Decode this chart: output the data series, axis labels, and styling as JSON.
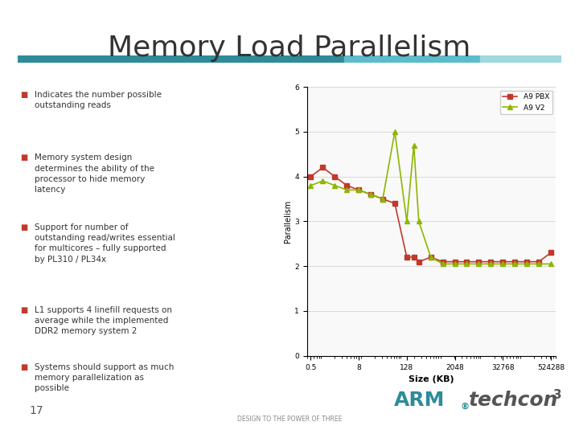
{
  "title": "Memory Load Parallelism",
  "title_fontsize": 26,
  "title_color": "#333333",
  "background_color": "#ffffff",
  "header_bar_colors": [
    "#2e8b9a",
    "#5bbccc",
    "#a0d8df"
  ],
  "bullet_color": "#c0392b",
  "bullets": [
    "Indicates the number possible\noutstanding reads",
    "Memory system design\ndetermines the ability of the\nprocessor to hide memory\nlatency",
    "Support for number of\noutstanding read/writes essential\nfor multicores – fully supported\nby PL310 / PL34x",
    "L1 supports 4 linefill requests on\naverage while the implemented\nDDR2 memory system 2",
    "Systems should support as much\nmemory parallelization as\npossible"
  ],
  "page_number": "17",
  "chart": {
    "x_labels": [
      "0.5",
      "8",
      "128",
      "2048",
      "32768",
      "524288"
    ],
    "x_log_values": [
      0.5,
      8,
      128,
      2048,
      32768,
      524288
    ],
    "ylabel": "Parallelism",
    "xlabel": "Size (KB)",
    "ylim": [
      0,
      6
    ],
    "yticks": [
      0,
      1,
      2,
      3,
      4,
      5,
      6
    ],
    "series": [
      {
        "label": "A9 PBX",
        "color": "#c0392b",
        "marker": "s",
        "x": [
          0.5,
          1,
          2,
          4,
          8,
          16,
          32,
          64,
          128,
          192,
          256,
          512,
          1024,
          2048,
          4096,
          8192,
          16384,
          32768,
          65536,
          131072,
          262144,
          524288
        ],
        "y": [
          4.0,
          4.2,
          4.0,
          3.8,
          3.7,
          3.6,
          3.5,
          3.4,
          2.2,
          2.2,
          2.1,
          2.2,
          2.1,
          2.1,
          2.1,
          2.1,
          2.1,
          2.1,
          2.1,
          2.1,
          2.1,
          2.3
        ]
      },
      {
        "label": "A9 V2",
        "color": "#8db600",
        "marker": "^",
        "x": [
          0.5,
          1,
          2,
          4,
          8,
          16,
          32,
          64,
          128,
          192,
          256,
          512,
          1024,
          2048,
          4096,
          8192,
          16384,
          32768,
          65536,
          131072,
          262144,
          524288
        ],
        "y": [
          3.8,
          3.9,
          3.8,
          3.7,
          3.7,
          3.6,
          3.5,
          5.0,
          3.0,
          4.7,
          3.0,
          2.2,
          2.05,
          2.05,
          2.05,
          2.05,
          2.05,
          2.05,
          2.05,
          2.05,
          2.05,
          2.05
        ]
      }
    ]
  },
  "arm_text_color": "#2e8b9a",
  "techcon_text_color": "#333333",
  "footer_text": "DESIGN TO THE POWER OF THREE"
}
